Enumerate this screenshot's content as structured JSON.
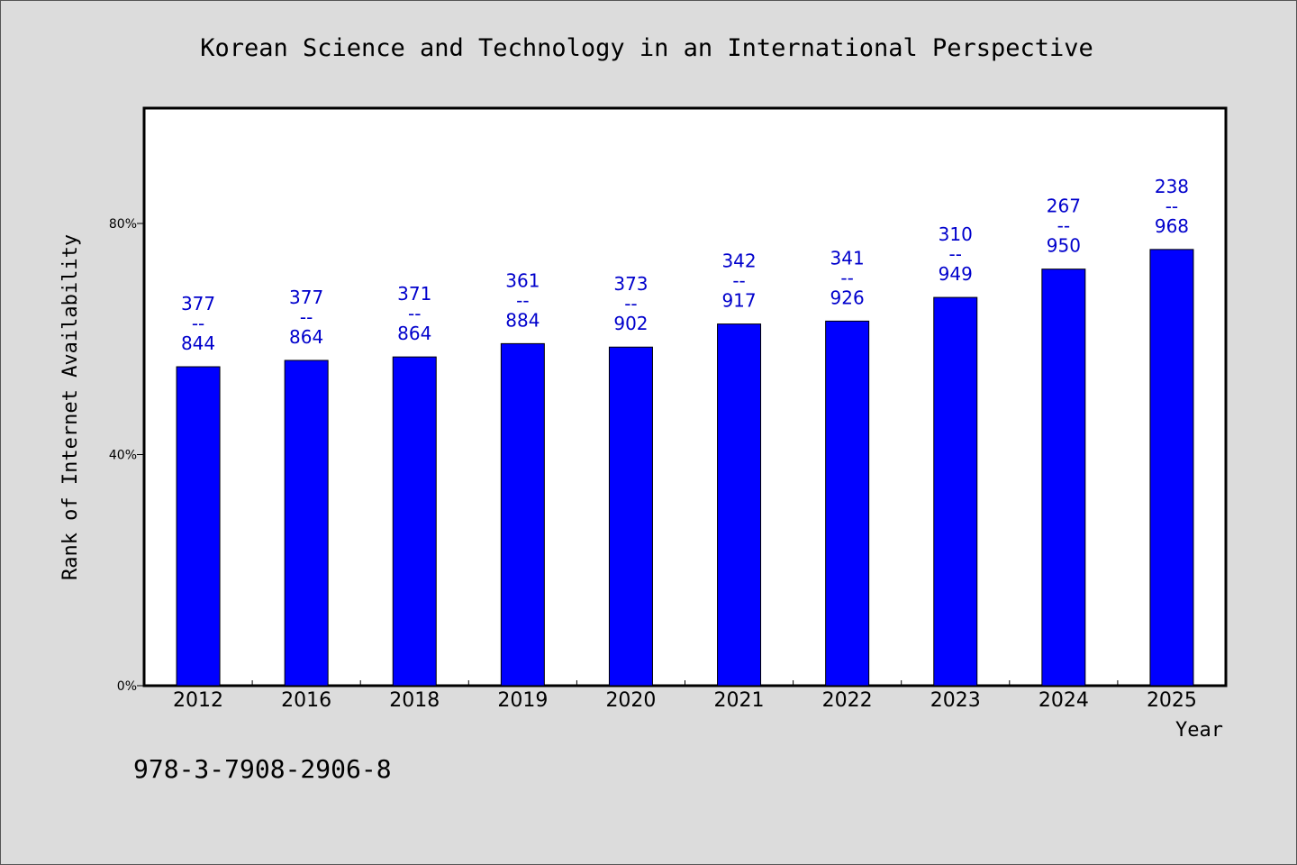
{
  "chart_data": {
    "type": "bar",
    "title": "Korean Science and Technology in an International Perspective",
    "xlabel": "Year",
    "ylabel": "Rank of Internet Availability",
    "ylim": [
      0,
      100
    ],
    "y_ticks": [
      {
        "value": 0,
        "label": "0%"
      },
      {
        "value": 40,
        "label": "40%"
      },
      {
        "value": 80,
        "label": "80%"
      }
    ],
    "categories": [
      "2012",
      "2016",
      "2018",
      "2019",
      "2020",
      "2021",
      "2022",
      "2023",
      "2024",
      "2025"
    ],
    "values": [
      55.2,
      56.3,
      56.9,
      59.2,
      58.6,
      62.6,
      63.1,
      67.2,
      72.1,
      75.5
    ],
    "data_labels": [
      {
        "top": "377",
        "sep": "--",
        "bottom": "844"
      },
      {
        "top": "377",
        "sep": "--",
        "bottom": "864"
      },
      {
        "top": "371",
        "sep": "--",
        "bottom": "864"
      },
      {
        "top": "361",
        "sep": "--",
        "bottom": "884"
      },
      {
        "top": "373",
        "sep": "--",
        "bottom": "902"
      },
      {
        "top": "342",
        "sep": "--",
        "bottom": "917"
      },
      {
        "top": "341",
        "sep": "--",
        "bottom": "926"
      },
      {
        "top": "310",
        "sep": "--",
        "bottom": "949"
      },
      {
        "top": "267",
        "sep": "--",
        "bottom": "950"
      },
      {
        "top": "238",
        "sep": "--",
        "bottom": "968"
      }
    ],
    "bar_color": "#0000ff",
    "label_color": "#0000cc",
    "grid": false,
    "legend": "none"
  },
  "footnote": "978-3-7908-2906-8"
}
